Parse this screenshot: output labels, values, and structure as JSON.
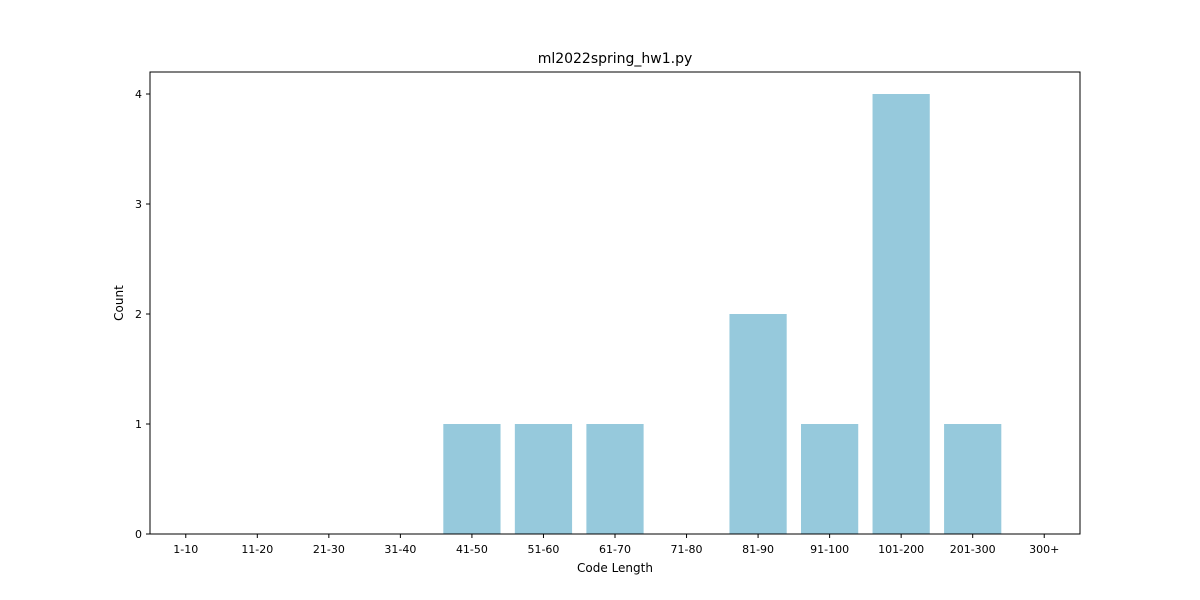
{
  "chart_data": {
    "type": "bar",
    "title": "ml2022spring_hw1.py",
    "xlabel": "Code Length",
    "ylabel": "Count",
    "categories": [
      "1-10",
      "11-20",
      "21-30",
      "31-40",
      "41-50",
      "51-60",
      "61-70",
      "71-80",
      "81-90",
      "91-100",
      "101-200",
      "201-300",
      "300+"
    ],
    "values": [
      0,
      0,
      0,
      0,
      1,
      1,
      1,
      0,
      2,
      1,
      4,
      1,
      0
    ],
    "ylim": [
      0,
      4.2
    ],
    "yticks": [
      0,
      1,
      2,
      3,
      4
    ],
    "bar_color": "#96c9dc",
    "grid": false,
    "legend": false
  }
}
